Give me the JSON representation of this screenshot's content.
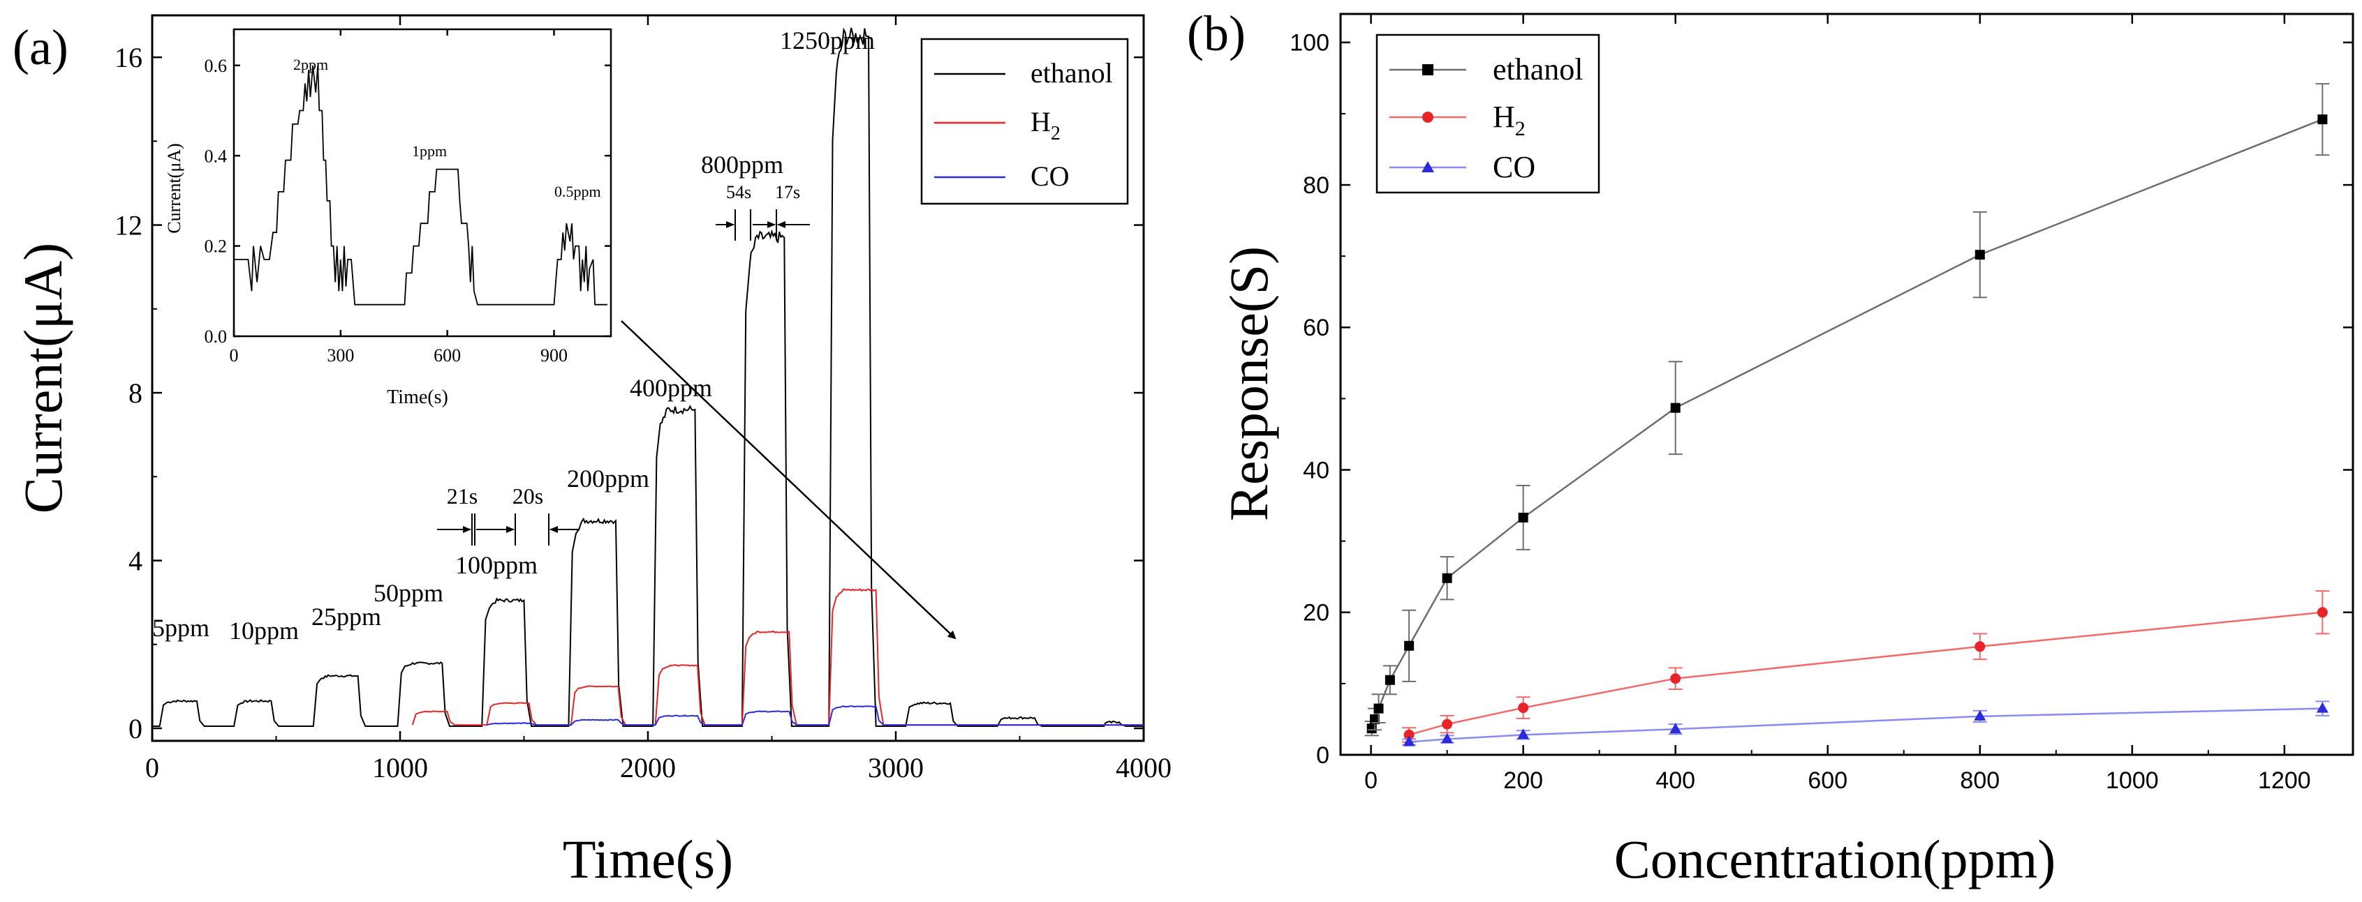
{
  "panel_a": {
    "label": "(a)",
    "xlabel": "Time(s)",
    "ylabel_text": "Current(",
    "ylabel_mu": "μ",
    "ylabel_end": "A)",
    "legend": {
      "ethanol": "ethanol",
      "h2_main": "H",
      "h2_sub": "2",
      "co": "CO"
    },
    "concentration_labels": {
      "c5": "5ppm",
      "c10": "10ppm",
      "c25": "25ppm",
      "c50": "50ppm",
      "c100": "100ppm",
      "c200": "200ppm",
      "c400": "400ppm",
      "c800": "800ppm",
      "c1250": "1250ppm"
    },
    "time_annotations": {
      "t21": "21s",
      "t20": "20s",
      "t54": "54s",
      "t17": "17s"
    },
    "inset": {
      "xlabel": "Time(s)",
      "ylabel": "Current(μA)",
      "labels": {
        "p2": "2ppm",
        "p1": "1ppm",
        "p05": "0.5ppm"
      }
    }
  },
  "panel_b": {
    "label": "(b)",
    "xlabel": "Concentration(ppm)",
    "ylabel": "Response(S)",
    "legend": {
      "ethanol": "ethanol",
      "h2_main": "H",
      "h2_sub": "2",
      "co": "CO"
    }
  },
  "colors": {
    "ethanol": "#000000",
    "h2": "#e8242a",
    "co": "#2b2bdc",
    "ethanol_b": "#6d6d6d",
    "h2_b": "#f06a6a",
    "co_b": "#8a8af2"
  },
  "chart_data": [
    {
      "type": "line",
      "title": "(a)",
      "xlabel": "Time(s)",
      "ylabel": "Current(μA)",
      "xlim": [
        0,
        4000
      ],
      "ylim": [
        0,
        17
      ],
      "xticks": [
        0,
        1000,
        2000,
        3000,
        4000
      ],
      "yticks": [
        0,
        4,
        8,
        12,
        16
      ],
      "series": [
        {
          "name": "ethanol",
          "pulses": [
            {
              "start": 30,
              "end": 180,
              "level": 0.65,
              "label": "5ppm"
            },
            {
              "start": 330,
              "end": 480,
              "level": 0.65,
              "label": "10ppm"
            },
            {
              "start": 650,
              "end": 830,
              "level": 1.25,
              "label": "25ppm"
            },
            {
              "start": 990,
              "end": 1170,
              "level": 1.55,
              "label": "50ppm"
            },
            {
              "start": 1330,
              "end": 1500,
              "level": 3.05,
              "label": "100ppm"
            },
            {
              "start": 1680,
              "end": 1870,
              "level": 4.95,
              "label": "200ppm"
            },
            {
              "start": 2020,
              "end": 2190,
              "level": 7.6,
              "label": "400ppm"
            },
            {
              "start": 2380,
              "end": 2550,
              "level": 11.7,
              "label": "800ppm"
            },
            {
              "start": 2730,
              "end": 2890,
              "level": 16.5,
              "label": "1250ppm"
            },
            {
              "start": 3040,
              "end": 3220,
              "level": 0.6
            },
            {
              "start": 3410,
              "end": 3560,
              "level": 0.25
            },
            {
              "start": 3840,
              "end": 3900,
              "level": 0.15
            }
          ]
        },
        {
          "name": "H2",
          "pulses": [
            {
              "start": 1050,
              "end": 1190,
              "level": 0.4
            },
            {
              "start": 1350,
              "end": 1520,
              "level": 0.6
            },
            {
              "start": 1690,
              "end": 1880,
              "level": 1.0
            },
            {
              "start": 2030,
              "end": 2200,
              "level": 1.5
            },
            {
              "start": 2380,
              "end": 2570,
              "level": 2.3
            },
            {
              "start": 2730,
              "end": 2920,
              "level": 3.3
            }
          ]
        },
        {
          "name": "CO",
          "pulses": [
            {
              "start": 1350,
              "end": 1520,
              "level": 0.12
            },
            {
              "start": 1690,
              "end": 1880,
              "level": 0.2
            },
            {
              "start": 2030,
              "end": 2200,
              "level": 0.3
            },
            {
              "start": 2380,
              "end": 2570,
              "level": 0.4
            },
            {
              "start": 2730,
              "end": 2920,
              "level": 0.52
            }
          ]
        }
      ],
      "annotations": [
        "21s",
        "20s",
        "54s",
        "17s"
      ],
      "inset": {
        "type": "line",
        "xlabel": "Time(s)",
        "ylabel": "Current(μA)",
        "xlim": [
          0,
          1060
        ],
        "ylim": [
          0,
          0.68
        ],
        "xticks": [
          0,
          300,
          600,
          900
        ],
        "yticks": [
          0.0,
          0.2,
          0.4,
          0.6
        ],
        "points": [
          [
            0,
            0.17
          ],
          [
            40,
            0.17
          ],
          [
            50,
            0.1
          ],
          [
            55,
            0.2
          ],
          [
            65,
            0.12
          ],
          [
            75,
            0.2
          ],
          [
            85,
            0.17
          ],
          [
            100,
            0.17
          ],
          [
            110,
            0.23
          ],
          [
            120,
            0.23
          ],
          [
            125,
            0.32
          ],
          [
            140,
            0.32
          ],
          [
            145,
            0.39
          ],
          [
            160,
            0.39
          ],
          [
            165,
            0.47
          ],
          [
            180,
            0.47
          ],
          [
            185,
            0.5
          ],
          [
            195,
            0.5
          ],
          [
            200,
            0.56
          ],
          [
            205,
            0.52
          ],
          [
            210,
            0.59
          ],
          [
            215,
            0.53
          ],
          [
            222,
            0.6
          ],
          [
            230,
            0.54
          ],
          [
            236,
            0.6
          ],
          [
            240,
            0.5
          ],
          [
            248,
            0.5
          ],
          [
            252,
            0.39
          ],
          [
            258,
            0.39
          ],
          [
            262,
            0.3
          ],
          [
            270,
            0.3
          ],
          [
            274,
            0.2
          ],
          [
            280,
            0.2
          ],
          [
            285,
            0.12
          ],
          [
            290,
            0.2
          ],
          [
            295,
            0.1
          ],
          [
            300,
            0.17
          ],
          [
            305,
            0.1
          ],
          [
            310,
            0.2
          ],
          [
            315,
            0.11
          ],
          [
            320,
            0.17
          ],
          [
            330,
            0.17
          ],
          [
            340,
            0.07
          ],
          [
            480,
            0.07
          ],
          [
            485,
            0.14
          ],
          [
            500,
            0.14
          ],
          [
            505,
            0.2
          ],
          [
            520,
            0.2
          ],
          [
            525,
            0.25
          ],
          [
            545,
            0.25
          ],
          [
            550,
            0.32
          ],
          [
            565,
            0.32
          ],
          [
            570,
            0.37
          ],
          [
            630,
            0.37
          ],
          [
            635,
            0.3
          ],
          [
            640,
            0.25
          ],
          [
            655,
            0.25
          ],
          [
            660,
            0.2
          ],
          [
            665,
            0.12
          ],
          [
            670,
            0.2
          ],
          [
            675,
            0.1
          ],
          [
            685,
            0.07
          ],
          [
            900,
            0.07
          ],
          [
            905,
            0.12
          ],
          [
            910,
            0.17
          ],
          [
            920,
            0.17
          ],
          [
            925,
            0.23
          ],
          [
            930,
            0.19
          ],
          [
            935,
            0.25
          ],
          [
            945,
            0.21
          ],
          [
            950,
            0.25
          ],
          [
            955,
            0.17
          ],
          [
            960,
            0.2
          ],
          [
            970,
            0.2
          ],
          [
            975,
            0.1
          ],
          [
            980,
            0.17
          ],
          [
            985,
            0.12
          ],
          [
            990,
            0.2
          ],
          [
            995,
            0.1
          ],
          [
            1000,
            0.15
          ],
          [
            1010,
            0.17
          ],
          [
            1015,
            0.07
          ],
          [
            1050,
            0.07
          ]
        ],
        "labels": [
          "2ppm",
          "1ppm",
          "0.5ppm"
        ]
      }
    },
    {
      "type": "line",
      "title": "(b)",
      "xlabel": "Concentration(ppm)",
      "ylabel": "Response(S)",
      "xlim": [
        -40,
        1290
      ],
      "ylim": [
        0,
        104
      ],
      "xticks": [
        0,
        200,
        400,
        600,
        800,
        1000,
        1200
      ],
      "yticks": [
        0,
        20,
        40,
        60,
        80,
        100
      ],
      "series": [
        {
          "name": "ethanol",
          "marker": "square",
          "x": [
            1,
            5,
            10,
            25,
            50,
            100,
            200,
            400,
            800,
            1250
          ],
          "y": [
            3.7,
            5.0,
            6.5,
            10.5,
            15.3,
            24.8,
            33.3,
            48.7,
            70.2,
            89.2
          ],
          "err": [
            1.0,
            1.5,
            2.0,
            2.0,
            5.0,
            3.0,
            4.5,
            6.5,
            6.0,
            5.0
          ]
        },
        {
          "name": "H2",
          "marker": "circle",
          "x": [
            50,
            100,
            200,
            400,
            800,
            1250
          ],
          "y": [
            2.8,
            4.3,
            6.6,
            10.7,
            15.2,
            20.0
          ],
          "err": [
            1.0,
            1.2,
            1.5,
            1.5,
            1.8,
            3.0
          ]
        },
        {
          "name": "CO",
          "marker": "triangle",
          "x": [
            50,
            100,
            200,
            400,
            800,
            1250
          ],
          "y": [
            1.8,
            2.2,
            2.8,
            3.6,
            5.4,
            6.5
          ],
          "err": [
            0.4,
            0.5,
            0.6,
            0.7,
            0.8,
            1.0
          ]
        }
      ]
    }
  ]
}
